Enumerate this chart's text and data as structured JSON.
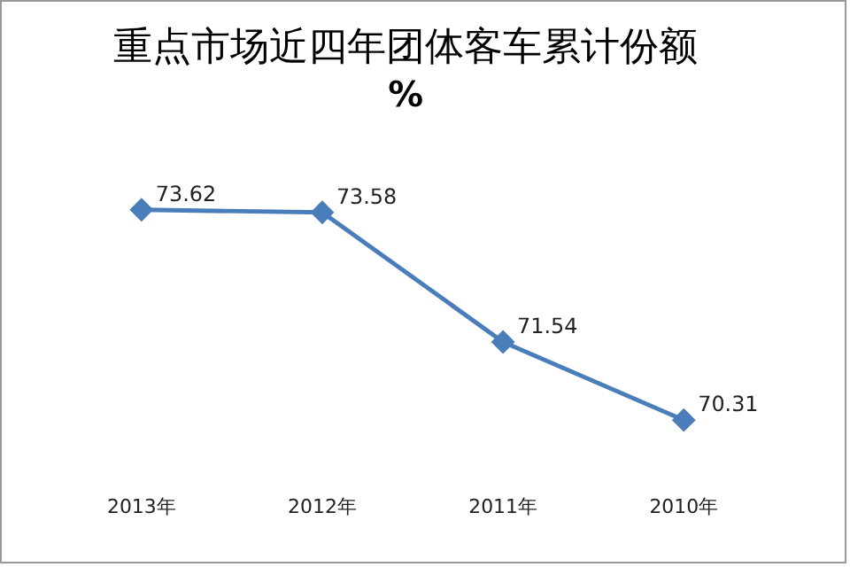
{
  "chart_data": {
    "type": "line",
    "title": "重点市场近四年团体客车累计份额",
    "subtitle": "%",
    "categories": [
      "2013年",
      "2012年",
      "2011年",
      "2010年"
    ],
    "series": [
      {
        "color": "#4a7ebb",
        "values": [
          73.62,
          73.58,
          71.54,
          70.31
        ]
      }
    ],
    "tick_labels": "x",
    "grid": false,
    "legend": false,
    "marker": "diamond",
    "line_style": "solid",
    "data_labels": true
  }
}
